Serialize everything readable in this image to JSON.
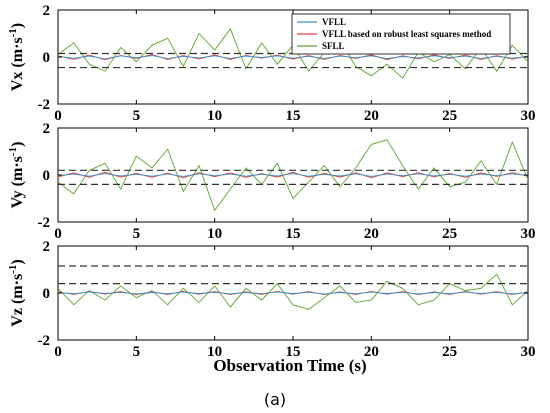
{
  "caption": "(a)",
  "xlabel": "Observation Time (s)",
  "series_colors": {
    "VFLL": "#3a8fd0",
    "VFLL based on robust least squares method": "#e2403a",
    "SFLL": "#5aa52b"
  },
  "legend": [
    "VFLL",
    "VFLL based on robust least squares method",
    "SFLL"
  ],
  "chart_data": [
    {
      "type": "line",
      "ylabel_main": "Vx (m·s",
      "ylabel_exp": "-1",
      "ylabel_close": ")",
      "xlim": [
        0,
        30
      ],
      "ylim": [
        -2,
        2
      ],
      "xticks": [
        0,
        5,
        10,
        15,
        20,
        25,
        30
      ],
      "yticks": [
        -2,
        0,
        2
      ],
      "dashed_bounds": [
        0.15,
        -0.45
      ],
      "series": [
        {
          "name": "VFLL",
          "x": [
            0,
            1,
            2,
            3,
            4,
            5,
            6,
            7,
            8,
            9,
            10,
            11,
            12,
            13,
            14,
            15,
            16,
            17,
            18,
            19,
            20,
            21,
            22,
            23,
            24,
            25,
            26,
            27,
            28,
            29,
            30
          ],
          "values": [
            0.02,
            -0.05,
            0.04,
            -0.08,
            0.05,
            -0.03,
            0.06,
            -0.07,
            0.03,
            -0.04,
            0.05,
            -0.06,
            0.04,
            -0.02,
            0.05,
            -0.05,
            0.03,
            -0.06,
            0.04,
            -0.03,
            0.05,
            -0.07,
            0.02,
            -0.04,
            0.05,
            -0.03,
            0.04,
            -0.06,
            0.03,
            -0.05,
            0.02
          ]
        },
        {
          "name": "VFLL based on robust least squares method",
          "x": [
            0,
            1,
            2,
            3,
            4,
            5,
            6,
            7,
            8,
            9,
            10,
            11,
            12,
            13,
            14,
            15,
            16,
            17,
            18,
            19,
            20,
            21,
            22,
            23,
            24,
            25,
            26,
            27,
            28,
            29,
            30
          ],
          "values": [
            0.05,
            -0.1,
            0.08,
            -0.12,
            0.07,
            -0.06,
            0.1,
            -0.1,
            0.06,
            -0.08,
            0.09,
            -0.1,
            0.07,
            -0.05,
            0.08,
            -0.09,
            0.06,
            -0.1,
            0.07,
            -0.06,
            0.09,
            -0.11,
            0.05,
            -0.08,
            0.09,
            -0.06,
            0.08,
            -0.1,
            0.06,
            -0.09,
            0.04
          ]
        },
        {
          "name": "SFLL",
          "x": [
            0,
            1,
            2,
            3,
            4,
            5,
            6,
            7,
            8,
            9,
            10,
            11,
            12,
            13,
            14,
            15,
            16,
            17,
            18,
            19,
            20,
            21,
            22,
            23,
            24,
            25,
            26,
            27,
            28,
            29,
            30
          ],
          "values": [
            0.1,
            0.6,
            -0.3,
            -0.6,
            0.4,
            -0.2,
            0.5,
            0.8,
            -0.4,
            1.0,
            0.3,
            1.2,
            -0.5,
            0.6,
            -0.3,
            0.5,
            -0.6,
            0.2,
            0.7,
            -0.4,
            -0.8,
            -0.3,
            -0.9,
            0.2,
            -0.2,
            0.1,
            -0.5,
            0.4,
            -0.6,
            0.5,
            -0.2
          ]
        }
      ]
    },
    {
      "type": "line",
      "ylabel_main": "Vy (m·s",
      "ylabel_exp": "-1",
      "ylabel_close": ")",
      "xlim": [
        0,
        30
      ],
      "ylim": [
        -2,
        2
      ],
      "xticks": [
        0,
        5,
        10,
        15,
        20,
        25,
        30
      ],
      "yticks": [
        -2,
        0,
        2
      ],
      "dashed_bounds": [
        0.2,
        -0.4
      ],
      "series": [
        {
          "name": "VFLL",
          "x": [
            0,
            1,
            2,
            3,
            4,
            5,
            6,
            7,
            8,
            9,
            10,
            11,
            12,
            13,
            14,
            15,
            16,
            17,
            18,
            19,
            20,
            21,
            22,
            23,
            24,
            25,
            26,
            27,
            28,
            29,
            30
          ],
          "values": [
            -0.03,
            0.04,
            -0.05,
            0.06,
            -0.04,
            0.03,
            -0.05,
            0.04,
            -0.06,
            0.05,
            -0.03,
            0.04,
            -0.05,
            0.03,
            -0.04,
            0.06,
            -0.05,
            0.03,
            -0.04,
            0.05,
            -0.06,
            0.04,
            -0.03,
            0.05,
            -0.04,
            0.03,
            -0.05,
            0.04,
            -0.03,
            0.05,
            -0.02
          ]
        },
        {
          "name": "VFLL based on robust least squares method",
          "x": [
            0,
            1,
            2,
            3,
            4,
            5,
            6,
            7,
            8,
            9,
            10,
            11,
            12,
            13,
            14,
            15,
            16,
            17,
            18,
            19,
            20,
            21,
            22,
            23,
            24,
            25,
            26,
            27,
            28,
            29,
            30
          ],
          "values": [
            -0.08,
            0.09,
            -0.1,
            0.12,
            -0.09,
            0.07,
            -0.1,
            0.08,
            -0.12,
            0.1,
            -0.07,
            0.09,
            -0.1,
            0.06,
            -0.09,
            0.11,
            -0.1,
            0.07,
            -0.09,
            0.1,
            -0.12,
            0.09,
            -0.07,
            0.1,
            -0.08,
            0.07,
            -0.1,
            0.09,
            -0.06,
            0.1,
            -0.05
          ]
        },
        {
          "name": "SFLL",
          "x": [
            0,
            1,
            2,
            3,
            4,
            5,
            6,
            7,
            8,
            9,
            10,
            11,
            12,
            13,
            14,
            15,
            16,
            17,
            18,
            19,
            20,
            21,
            22,
            23,
            24,
            25,
            26,
            27,
            28,
            29,
            30
          ],
          "values": [
            -0.3,
            -0.8,
            0.2,
            0.5,
            -0.6,
            0.8,
            0.3,
            1.1,
            -0.7,
            0.4,
            -1.5,
            -0.6,
            0.3,
            -0.4,
            0.5,
            -1.0,
            -0.3,
            0.4,
            -0.5,
            0.3,
            1.3,
            1.5,
            0.4,
            -0.6,
            0.3,
            -0.5,
            -0.3,
            0.6,
            -0.4,
            1.4,
            -0.2
          ]
        }
      ]
    },
    {
      "type": "line",
      "ylabel_main": "Vz (m·s",
      "ylabel_exp": "-1",
      "ylabel_close": ")",
      "xlim": [
        0,
        30
      ],
      "ylim": [
        -2,
        2
      ],
      "xticks": [
        0,
        5,
        10,
        15,
        20,
        25,
        30
      ],
      "yticks": [
        -2,
        0,
        2
      ],
      "dashed_bounds": [
        1.15,
        0.4
      ],
      "series": [
        {
          "name": "VFLL",
          "x": [
            0,
            1,
            2,
            3,
            4,
            5,
            6,
            7,
            8,
            9,
            10,
            11,
            12,
            13,
            14,
            15,
            16,
            17,
            18,
            19,
            20,
            21,
            22,
            23,
            24,
            25,
            26,
            27,
            28,
            29,
            30
          ],
          "values": [
            0.02,
            -0.03,
            0.04,
            -0.02,
            0.03,
            -0.04,
            0.02,
            -0.03,
            0.04,
            -0.02,
            0.03,
            -0.04,
            0.02,
            -0.03,
            0.04,
            -0.02,
            0.03,
            -0.04,
            0.02,
            -0.03,
            0.04,
            -0.02,
            0.03,
            -0.04,
            0.02,
            -0.03,
            0.04,
            -0.02,
            0.03,
            -0.04,
            0.02
          ]
        },
        {
          "name": "VFLL based on robust least squares method",
          "x": [
            0,
            1,
            2,
            3,
            4,
            5,
            6,
            7,
            8,
            9,
            10,
            11,
            12,
            13,
            14,
            15,
            16,
            17,
            18,
            19,
            20,
            21,
            22,
            23,
            24,
            25,
            26,
            27,
            28,
            29,
            30
          ],
          "values": [
            0.05,
            -0.06,
            0.07,
            -0.05,
            0.06,
            -0.07,
            0.05,
            -0.06,
            0.07,
            -0.05,
            0.06,
            -0.07,
            0.05,
            -0.06,
            0.07,
            -0.05,
            0.06,
            -0.07,
            0.05,
            -0.06,
            0.07,
            -0.05,
            0.06,
            -0.07,
            0.05,
            -0.06,
            0.07,
            -0.05,
            0.06,
            -0.07,
            0.04
          ]
        },
        {
          "name": "SFLL",
          "x": [
            0,
            1,
            2,
            3,
            4,
            5,
            6,
            7,
            8,
            9,
            10,
            11,
            12,
            13,
            14,
            15,
            16,
            17,
            18,
            19,
            20,
            21,
            22,
            23,
            24,
            25,
            26,
            27,
            28,
            29,
            30
          ],
          "values": [
            0.2,
            -0.5,
            0.1,
            -0.3,
            0.3,
            -0.2,
            0.1,
            -0.5,
            0.2,
            -0.4,
            0.3,
            -0.6,
            0.2,
            -0.3,
            0.4,
            -0.5,
            -0.7,
            -0.2,
            0.3,
            -0.4,
            -0.3,
            0.5,
            0.2,
            -0.5,
            -0.3,
            0.4,
            0.1,
            0.2,
            0.8,
            -0.5,
            0.1
          ]
        }
      ]
    }
  ]
}
